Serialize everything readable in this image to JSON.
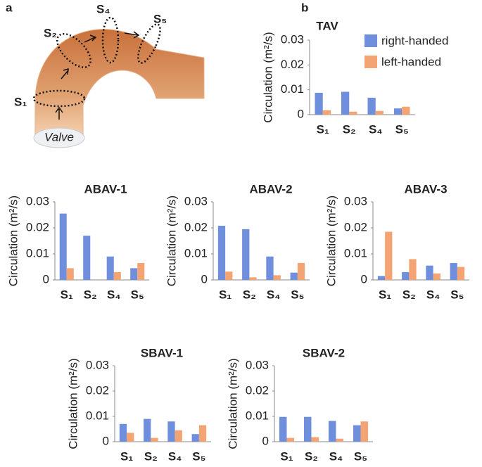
{
  "panel_labels": [
    "a",
    "b"
  ],
  "diagram": {
    "sections": [
      "S₁",
      "S₂",
      "S₄",
      "S₅"
    ],
    "valve": "Valve"
  },
  "chart_data": [
    {
      "type": "bar",
      "title": "TAV",
      "ylabel": "Circulation (m²/s)",
      "categories": [
        "S₁",
        "S₂",
        "S₄",
        "S₅"
      ],
      "series": [
        {
          "name": "right-handed",
          "color": "#6f8fdc",
          "values": [
            0.0088,
            0.0092,
            0.0068,
            0.0025
          ]
        },
        {
          "name": "left-handed",
          "color": "#f4a472",
          "values": [
            0.0018,
            0.0012,
            0.0015,
            0.0032
          ]
        }
      ],
      "ylim": [
        0,
        0.03
      ],
      "yticks": [
        0,
        0.01,
        0.02,
        0.03
      ],
      "legend": "upper right"
    },
    {
      "type": "bar",
      "title": "ABAV-1",
      "ylabel": "Circulation (m²/s)",
      "categories": [
        "S₁",
        "S₂",
        "S₄",
        "S₅"
      ],
      "series": [
        {
          "name": "right-handed",
          "color": "#6f8fdc",
          "values": [
            0.0255,
            0.017,
            0.009,
            0.0045
          ]
        },
        {
          "name": "left-handed",
          "color": "#f4a472",
          "values": [
            0.0045,
            0,
            0.003,
            0.0065
          ]
        }
      ],
      "ylim": [
        0,
        0.03
      ],
      "yticks": [
        0,
        0.01,
        0.02,
        0.03
      ]
    },
    {
      "type": "bar",
      "title": "ABAV-2",
      "ylabel": "Circulation (m²/s)",
      "categories": [
        "S₁",
        "S₂",
        "S₄",
        "S₅"
      ],
      "series": [
        {
          "name": "right-handed",
          "color": "#6f8fdc",
          "values": [
            0.0208,
            0.0195,
            0.009,
            0.0028
          ]
        },
        {
          "name": "left-handed",
          "color": "#f4a472",
          "values": [
            0.0032,
            0.001,
            0.0018,
            0.0065
          ]
        }
      ],
      "ylim": [
        0,
        0.03
      ],
      "yticks": [
        0,
        0.01,
        0.02,
        0.03
      ]
    },
    {
      "type": "bar",
      "title": "ABAV-3",
      "ylabel": "Circulation (m²/s)",
      "categories": [
        "S₁",
        "S₂",
        "S₄",
        "S₅"
      ],
      "series": [
        {
          "name": "right-handed",
          "color": "#6f8fdc",
          "values": [
            0.0015,
            0.003,
            0.0055,
            0.0065
          ]
        },
        {
          "name": "left-handed",
          "color": "#f4a472",
          "values": [
            0.0185,
            0.008,
            0.0025,
            0.005
          ]
        }
      ],
      "ylim": [
        0,
        0.03
      ],
      "yticks": [
        0,
        0.01,
        0.02,
        0.03
      ]
    },
    {
      "type": "bar",
      "title": "SBAV-1",
      "ylabel": "Circulation (m²/s)",
      "categories": [
        "S₁",
        "S₂",
        "S₄",
        "S₅"
      ],
      "series": [
        {
          "name": "right-handed",
          "color": "#6f8fdc",
          "values": [
            0.007,
            0.009,
            0.008,
            0.003
          ]
        },
        {
          "name": "left-handed",
          "color": "#f4a472",
          "values": [
            0.0035,
            0.0015,
            0.0045,
            0.0065
          ]
        }
      ],
      "ylim": [
        0,
        0.03
      ],
      "yticks": [
        0,
        0.01,
        0.02,
        0.03
      ]
    },
    {
      "type": "bar",
      "title": "SBAV-2",
      "ylabel": "Circulation (m²/s)",
      "categories": [
        "S₁",
        "S₂",
        "S₄",
        "S₅"
      ],
      "series": [
        {
          "name": "right-handed",
          "color": "#6f8fdc",
          "values": [
            0.0098,
            0.0098,
            0.0082,
            0.0065
          ]
        },
        {
          "name": "left-handed",
          "color": "#f4a472",
          "values": [
            0.0015,
            0.0018,
            0.0012,
            0.008
          ]
        }
      ],
      "ylim": [
        0,
        0.03
      ],
      "yticks": [
        0,
        0.01,
        0.02,
        0.03
      ]
    }
  ]
}
